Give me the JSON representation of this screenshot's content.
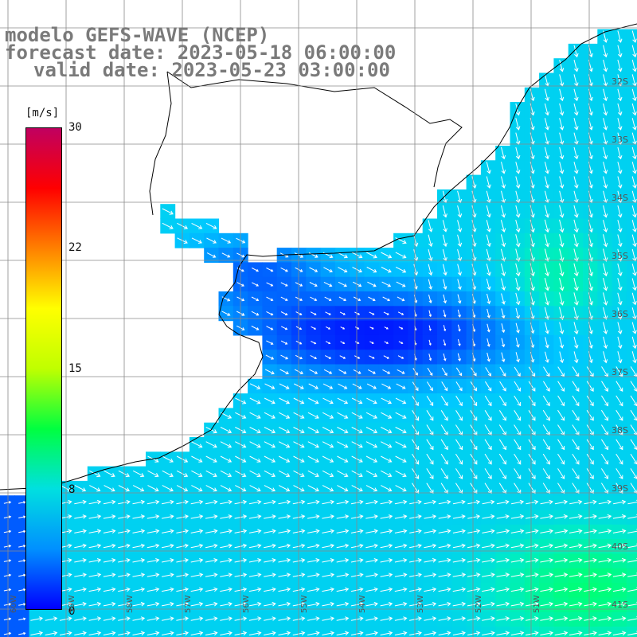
{
  "title": {
    "model": "modelo GEFS-WAVE (NCEP)",
    "forecast": "forecast date: 2023-05-18 06:00:00",
    "valid": "valid date: 2023-05-23 03:00:00"
  },
  "colorbar": {
    "unit": "[m/s]",
    "min": 0,
    "max": 30,
    "ticks": [
      "30",
      "22",
      "15",
      "8",
      "0"
    ],
    "tick_values": [
      30,
      22,
      15,
      8,
      0
    ],
    "colors": [
      "#0000ff",
      "#0090ff",
      "#00e0e0",
      "#00ff40",
      "#c0ff00",
      "#ffff00",
      "#ff8000",
      "#ff0000",
      "#c00060"
    ]
  },
  "latitude_labels": [
    "32S",
    "33S",
    "34S",
    "35S",
    "36S",
    "37S",
    "38S",
    "39S",
    "40S",
    "41S"
  ],
  "longitude_labels": [
    "60W",
    "59W",
    "58W",
    "57W",
    "56W",
    "55W",
    "54W",
    "53W",
    "52W",
    "51W"
  ]
}
